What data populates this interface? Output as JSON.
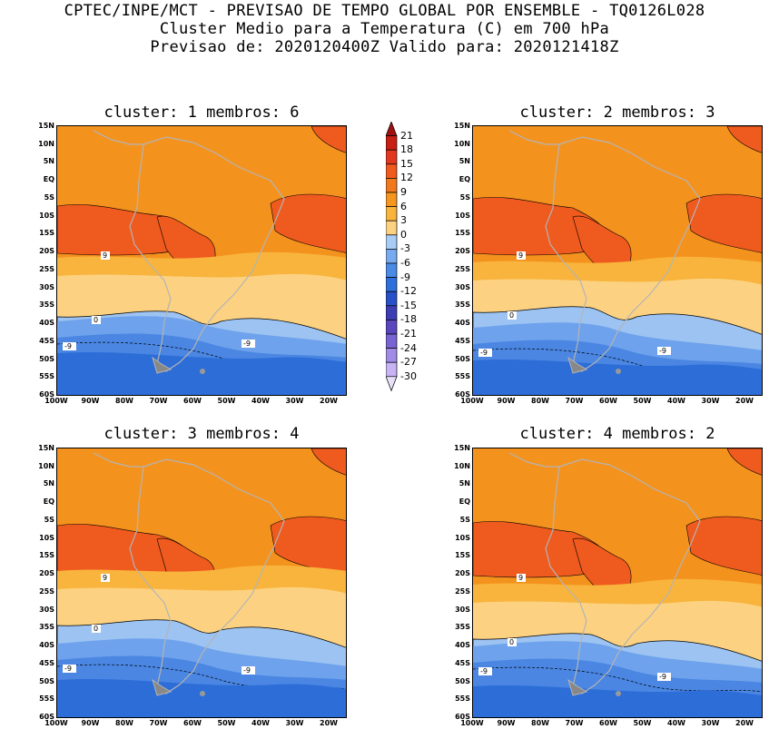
{
  "titles": {
    "line1": "CPTEC/INPE/MCT - PREVISAO DE TEMPO GLOBAL POR ENSEMBLE - TQ0126L028",
    "line2": "Cluster Medio para a Temperatura (C) em 700 hPa",
    "line3": "Previsao de: 2020120400Z   Valido para: 2020121418Z"
  },
  "panels": [
    {
      "title": "cluster: 1  membros: 6"
    },
    {
      "title": "cluster: 2  membros: 3"
    },
    {
      "title": "cluster: 3  membros: 4"
    },
    {
      "title": "cluster: 4  membros: 2"
    }
  ],
  "lat_ticks": [
    "15N",
    "10N",
    "5N",
    "EQ",
    "5S",
    "10S",
    "15S",
    "20S",
    "25S",
    "30S",
    "35S",
    "40S",
    "45S",
    "50S",
    "55S",
    "60S"
  ],
  "lon_ticks": [
    "100W",
    "90W",
    "80W",
    "70W",
    "60W",
    "50W",
    "40W",
    "30W",
    "20W"
  ],
  "colorbar": {
    "labels": [
      "21",
      "18",
      "15",
      "12",
      "9",
      "6",
      "3",
      "0",
      "-3",
      "-6",
      "-9",
      "-12",
      "-15",
      "-18",
      "-21",
      "-24",
      "-27",
      "-30"
    ],
    "colors": [
      "#a01010",
      "#c81e14",
      "#e2391e",
      "#ef5a1e",
      "#f2781e",
      "#f5961e",
      "#f8b43c",
      "#fcd282",
      "#a8cdf5",
      "#78aaf0",
      "#4a8be6",
      "#2d6fdc",
      "#2850c8",
      "#3c3cb4",
      "#5a46be",
      "#7864d2",
      "#a08ce6",
      "#c8b4f5",
      "#e8e0fa"
    ]
  },
  "contour_labels": [
    "9",
    "0",
    "-9"
  ],
  "colors": {
    "warm12": "#ef5a1e",
    "warm9": "#f4921e",
    "warm6": "#f8b43c",
    "warm3": "#fcd282",
    "cold0": "#9cc3f2",
    "cold3": "#6ea2ec",
    "cold6": "#4a86e2",
    "cold9": "#2d6dd8",
    "coastline": "#b4b4b4"
  }
}
